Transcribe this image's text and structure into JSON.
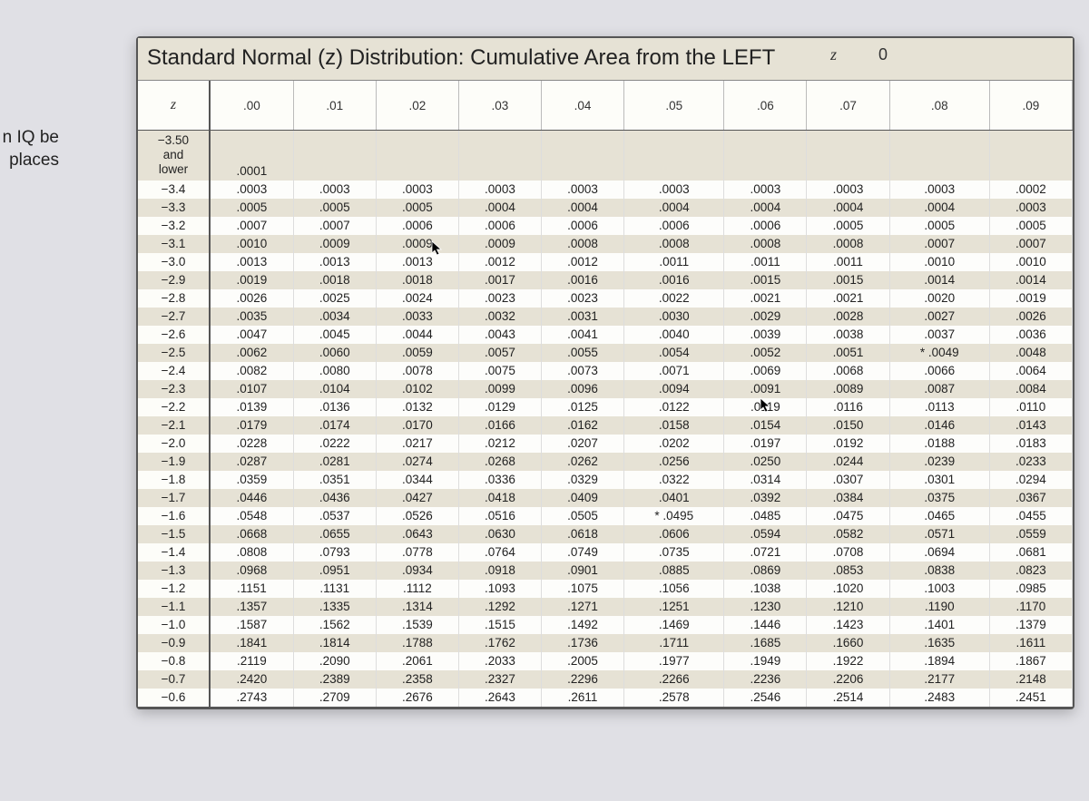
{
  "left_fragment_line1": "n IQ be",
  "left_fragment_line2": "places",
  "title": "Standard Normal (z) Distribution: Cumulative Area from the LEFT",
  "z_marker": "z",
  "zero_marker": "0",
  "columns": [
    "z",
    ".00",
    ".01",
    ".02",
    ".03",
    ".04",
    ".05",
    ".06",
    ".07",
    ".08",
    ".09"
  ],
  "shaded_rows": [
    0,
    2,
    4,
    6,
    8,
    10,
    12,
    14,
    16,
    18,
    20,
    22,
    24,
    26,
    28,
    30
  ],
  "rows": [
    [
      "−3.50 and lower",
      ".0001",
      "",
      "",
      "",
      "",
      "",
      "",
      "",
      "",
      ""
    ],
    [
      "−3.4",
      ".0003",
      ".0003",
      ".0003",
      ".0003",
      ".0003",
      ".0003",
      ".0003",
      ".0003",
      ".0003",
      ".0002"
    ],
    [
      "−3.3",
      ".0005",
      ".0005",
      ".0005",
      ".0004",
      ".0004",
      ".0004",
      ".0004",
      ".0004",
      ".0004",
      ".0003"
    ],
    [
      "−3.2",
      ".0007",
      ".0007",
      ".0006",
      ".0006",
      ".0006",
      ".0006",
      ".0006",
      ".0005",
      ".0005",
      ".0005"
    ],
    [
      "−3.1",
      ".0010",
      ".0009",
      ".0009",
      ".0009",
      ".0008",
      ".0008",
      ".0008",
      ".0008",
      ".0007",
      ".0007"
    ],
    [
      "−3.0",
      ".0013",
      ".0013",
      ".0013",
      ".0012",
      ".0012",
      ".0011",
      ".0011",
      ".0011",
      ".0010",
      ".0010"
    ],
    [
      "−2.9",
      ".0019",
      ".0018",
      ".0018",
      ".0017",
      ".0016",
      ".0016",
      ".0015",
      ".0015",
      ".0014",
      ".0014"
    ],
    [
      "−2.8",
      ".0026",
      ".0025",
      ".0024",
      ".0023",
      ".0023",
      ".0022",
      ".0021",
      ".0021",
      ".0020",
      ".0019"
    ],
    [
      "−2.7",
      ".0035",
      ".0034",
      ".0033",
      ".0032",
      ".0031",
      ".0030",
      ".0029",
      ".0028",
      ".0027",
      ".0026"
    ],
    [
      "−2.6",
      ".0047",
      ".0045",
      ".0044",
      ".0043",
      ".0041",
      ".0040",
      ".0039",
      ".0038",
      ".0037",
      ".0036"
    ],
    [
      "−2.5",
      ".0062",
      ".0060",
      ".0059",
      ".0057",
      ".0055",
      ".0054",
      ".0052",
      ".0051",
      "* .0049",
      ".0048"
    ],
    [
      "−2.4",
      ".0082",
      ".0080",
      ".0078",
      ".0075",
      ".0073",
      ".0071",
      ".0069",
      ".0068",
      ".0066",
      ".0064"
    ],
    [
      "−2.3",
      ".0107",
      ".0104",
      ".0102",
      ".0099",
      ".0096",
      ".0094",
      ".0091",
      ".0089",
      ".0087",
      ".0084"
    ],
    [
      "−2.2",
      ".0139",
      ".0136",
      ".0132",
      ".0129",
      ".0125",
      ".0122",
      ".0119",
      ".0116",
      ".0113",
      ".0110"
    ],
    [
      "−2.1",
      ".0179",
      ".0174",
      ".0170",
      ".0166",
      ".0162",
      ".0158",
      ".0154",
      ".0150",
      ".0146",
      ".0143"
    ],
    [
      "−2.0",
      ".0228",
      ".0222",
      ".0217",
      ".0212",
      ".0207",
      ".0202",
      ".0197",
      ".0192",
      ".0188",
      ".0183"
    ],
    [
      "−1.9",
      ".0287",
      ".0281",
      ".0274",
      ".0268",
      ".0262",
      ".0256",
      ".0250",
      ".0244",
      ".0239",
      ".0233"
    ],
    [
      "−1.8",
      ".0359",
      ".0351",
      ".0344",
      ".0336",
      ".0329",
      ".0322",
      ".0314",
      ".0307",
      ".0301",
      ".0294"
    ],
    [
      "−1.7",
      ".0446",
      ".0436",
      ".0427",
      ".0418",
      ".0409",
      ".0401",
      ".0392",
      ".0384",
      ".0375",
      ".0367"
    ],
    [
      "−1.6",
      ".0548",
      ".0537",
      ".0526",
      ".0516",
      ".0505",
      "* .0495",
      ".0485",
      ".0475",
      ".0465",
      ".0455"
    ],
    [
      "−1.5",
      ".0668",
      ".0655",
      ".0643",
      ".0630",
      ".0618",
      ".0606",
      ".0594",
      ".0582",
      ".0571",
      ".0559"
    ],
    [
      "−1.4",
      ".0808",
      ".0793",
      ".0778",
      ".0764",
      ".0749",
      ".0735",
      ".0721",
      ".0708",
      ".0694",
      ".0681"
    ],
    [
      "−1.3",
      ".0968",
      ".0951",
      ".0934",
      ".0918",
      ".0901",
      ".0885",
      ".0869",
      ".0853",
      ".0838",
      ".0823"
    ],
    [
      "−1.2",
      ".1151",
      ".1131",
      ".1112",
      ".1093",
      ".1075",
      ".1056",
      ".1038",
      ".1020",
      ".1003",
      ".0985"
    ],
    [
      "−1.1",
      ".1357",
      ".1335",
      ".1314",
      ".1292",
      ".1271",
      ".1251",
      ".1230",
      ".1210",
      ".1190",
      ".1170"
    ],
    [
      "−1.0",
      ".1587",
      ".1562",
      ".1539",
      ".1515",
      ".1492",
      ".1469",
      ".1446",
      ".1423",
      ".1401",
      ".1379"
    ],
    [
      "−0.9",
      ".1841",
      ".1814",
      ".1788",
      ".1762",
      ".1736",
      ".1711",
      ".1685",
      ".1660",
      ".1635",
      ".1611"
    ],
    [
      "−0.8",
      ".2119",
      ".2090",
      ".2061",
      ".2033",
      ".2005",
      ".1977",
      ".1949",
      ".1922",
      ".1894",
      ".1867"
    ],
    [
      "−0.7",
      ".2420",
      ".2389",
      ".2358",
      ".2327",
      ".2296",
      ".2266",
      ".2236",
      ".2206",
      ".2177",
      ".2148"
    ],
    [
      "−0.6",
      ".2743",
      ".2709",
      ".2676",
      ".2643",
      ".2611",
      ".2578",
      ".2546",
      ".2514",
      ".2483",
      ".2451"
    ]
  ],
  "colors": {
    "background": "#e0e0e5",
    "paper_bg": "#fdfdfb",
    "shaded_bg": "#e6e2d5",
    "text": "#222222",
    "border_dark": "#555555",
    "border_light": "#dddddd"
  }
}
